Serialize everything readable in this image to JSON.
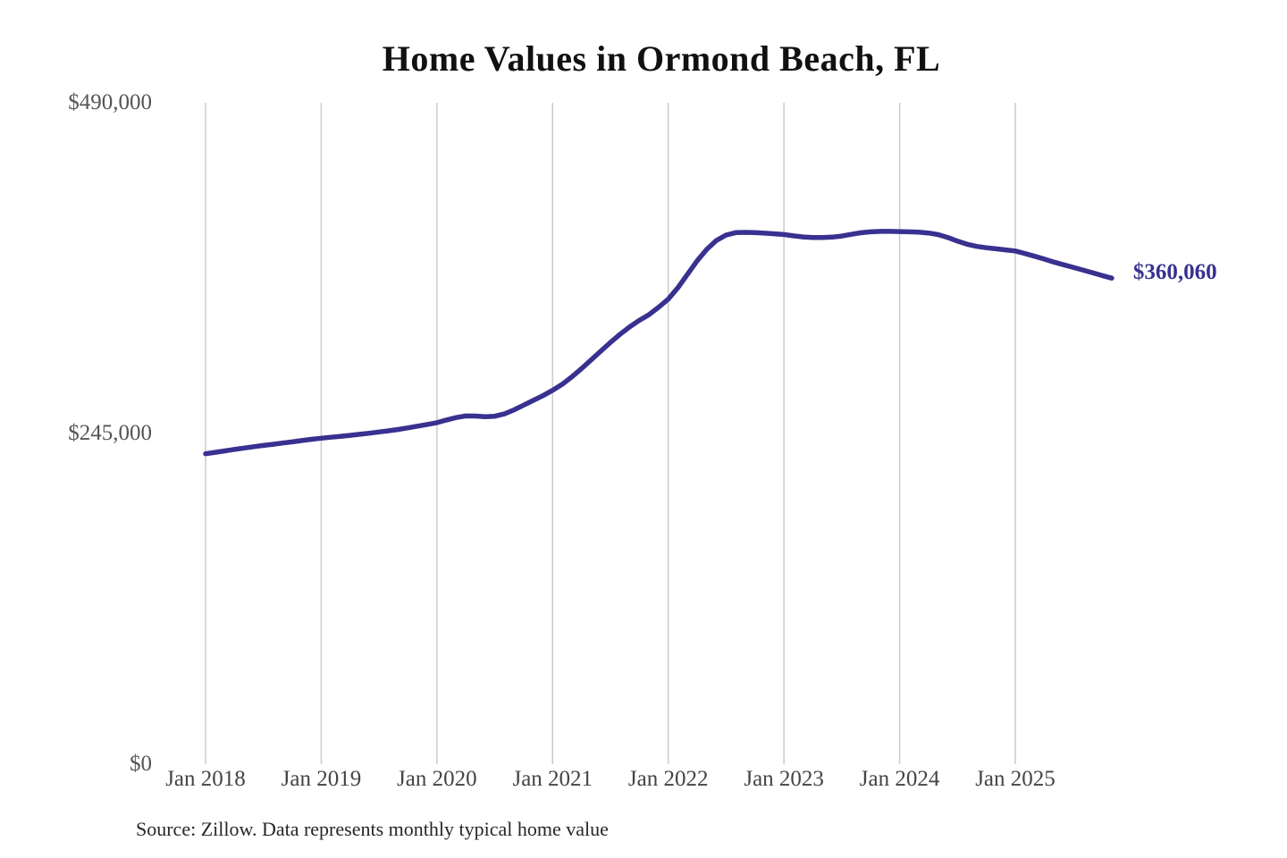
{
  "source_note": "Source: Zillow. Data represents monthly typical home value",
  "colors": {
    "line": "#393190",
    "grid": "#cccccc",
    "last_value_label": "#393190",
    "title": "#111111",
    "axis_labels": "#4a4a4a"
  },
  "chart_data": {
    "type": "line",
    "title": "Home Values in Ormond Beach, FL",
    "xlabel": "",
    "ylabel": "",
    "x_unit": "month",
    "x_start": "Jan 2018",
    "x_end": "Nov 2025",
    "x_tick_labels": [
      "Jan 2018",
      "Jan 2019",
      "Jan 2020",
      "Jan 2021",
      "Jan 2022",
      "Jan 2023",
      "Jan 2024",
      "Jan 2025"
    ],
    "y_ticks": [
      {
        "label": "$490,000",
        "value": 490000
      },
      {
        "label": "$245,000",
        "value": 245000
      },
      {
        "label": "$0",
        "value": 0
      }
    ],
    "ylim": [
      0,
      490000
    ],
    "grid": "vertical-only",
    "legend": "none",
    "last_value": 360060,
    "last_value_label": "$360,060",
    "series": [
      {
        "name": "Typical home value",
        "values": [
          230000,
          231000,
          232100,
          233200,
          234200,
          235200,
          236100,
          237000,
          237900,
          238800,
          239800,
          240700,
          241500,
          242200,
          242900,
          243600,
          244400,
          245200,
          246100,
          247000,
          248000,
          249200,
          250400,
          251700,
          253000,
          255000,
          256800,
          258000,
          257900,
          257400,
          257800,
          259500,
          262500,
          266000,
          269500,
          273000,
          277000,
          281500,
          287000,
          293000,
          299500,
          306000,
          312500,
          318500,
          324000,
          328800,
          333000,
          338500,
          344500,
          353000,
          363000,
          373000,
          381500,
          388000,
          392000,
          393800,
          394000,
          393800,
          393400,
          392900,
          392400,
          391400,
          390600,
          390200,
          390200,
          390500,
          391300,
          392500,
          393700,
          394400,
          394700,
          394700,
          394600,
          394400,
          394100,
          393500,
          392300,
          390200,
          387500,
          385200,
          383600,
          382600,
          381800,
          381000,
          380200,
          378300,
          376300,
          374200,
          372000,
          370000,
          368100,
          366100,
          364100,
          362000,
          360060
        ]
      }
    ]
  }
}
